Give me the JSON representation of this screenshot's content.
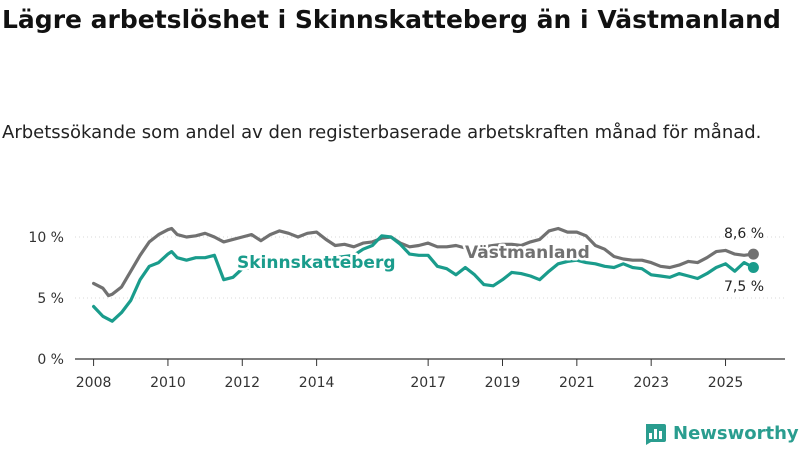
{
  "title": "Lägre arbetslöshet i Skinnskatteberg än i Västmanland",
  "subtitle": "Arbetssökande som andel av den registerbaserade arbetskraften månad för månad.",
  "colors": {
    "skinnskatteberg": "#1a9c8c",
    "vastmanland": "#717171",
    "logo": "#2a9d8f",
    "axis": "#333333"
  },
  "logo": {
    "text": "Newsworthy",
    "icon": "bar-chart-logo-icon"
  },
  "chart_data": {
    "type": "line",
    "title": "Lägre arbetslöshet i Skinnskatteberg än i Västmanland",
    "xlabel": "",
    "ylabel": "",
    "xlim": [
      2007.5,
      2026.6
    ],
    "ylim": [
      0,
      10
    ],
    "y_ticks": [
      0,
      5,
      10
    ],
    "y_tick_labels": [
      "0 %",
      "5 %",
      "10 %"
    ],
    "x_ticks": [
      2008,
      2010,
      2012,
      2014,
      2017,
      2019,
      2021,
      2023,
      2025
    ],
    "x_tick_labels": [
      "2008",
      "2010",
      "2012",
      "2014",
      "2017",
      "2019",
      "2021",
      "2023",
      "2025"
    ],
    "end_labels": [
      "8,6 %",
      "7,5 %"
    ],
    "series": [
      {
        "name": "Västmanland",
        "x": [
          2008.0,
          2008.25,
          2008.4,
          2008.5,
          2008.75,
          2009.0,
          2009.25,
          2009.5,
          2009.75,
          2010.0,
          2010.1,
          2010.25,
          2010.5,
          2010.75,
          2011.0,
          2011.25,
          2011.5,
          2011.75,
          2012.0,
          2012.25,
          2012.5,
          2012.75,
          2013.0,
          2013.25,
          2013.5,
          2013.75,
          2014.0,
          2014.25,
          2014.5,
          2014.75,
          2015.0,
          2015.25,
          2015.5,
          2015.75,
          2016.0,
          2016.25,
          2016.5,
          2016.75,
          2017.0,
          2017.25,
          2017.5,
          2017.75,
          2018.0,
          2018.25,
          2018.5,
          2018.75,
          2019.0,
          2019.25,
          2019.5,
          2019.75,
          2020.0,
          2020.25,
          2020.5,
          2020.75,
          2021.0,
          2021.25,
          2021.5,
          2021.75,
          2022.0,
          2022.25,
          2022.5,
          2022.75,
          2023.0,
          2023.25,
          2023.5,
          2023.75,
          2024.0,
          2024.25,
          2024.5,
          2024.75,
          2025.0,
          2025.25,
          2025.5,
          2025.75
        ],
        "values": [
          6.2,
          5.8,
          5.2,
          5.3,
          5.9,
          7.2,
          8.5,
          9.6,
          10.2,
          10.6,
          10.7,
          10.2,
          10.0,
          10.1,
          10.3,
          10.0,
          9.6,
          9.8,
          10.0,
          10.2,
          9.7,
          10.2,
          10.5,
          10.3,
          10.0,
          10.3,
          10.4,
          9.8,
          9.3,
          9.4,
          9.2,
          9.5,
          9.6,
          9.9,
          10.0,
          9.5,
          9.2,
          9.3,
          9.5,
          9.2,
          9.2,
          9.3,
          9.1,
          9.0,
          9.2,
          9.3,
          9.4,
          9.4,
          9.3,
          9.6,
          9.8,
          10.5,
          10.7,
          10.4,
          10.4,
          10.1,
          9.3,
          9.0,
          8.4,
          8.2,
          8.1,
          8.1,
          7.9,
          7.6,
          7.5,
          7.7,
          8.0,
          7.9,
          8.3,
          8.8,
          8.9,
          8.6,
          8.5,
          8.6
        ]
      },
      {
        "name": "Skinnskatteberg",
        "x": [
          2008.0,
          2008.25,
          2008.5,
          2008.75,
          2009.0,
          2009.25,
          2009.5,
          2009.75,
          2010.0,
          2010.1,
          2010.25,
          2010.5,
          2010.75,
          2011.0,
          2011.25,
          2011.5,
          2011.75,
          2012.0,
          2012.25,
          2012.5,
          2012.75,
          2013.0,
          2013.25,
          2013.5,
          2013.75,
          2014.0,
          2014.25,
          2014.5,
          2014.75,
          2015.0,
          2015.25,
          2015.5,
          2015.75,
          2016.0,
          2016.25,
          2016.5,
          2016.75,
          2017.0,
          2017.25,
          2017.5,
          2017.75,
          2018.0,
          2018.25,
          2018.5,
          2018.75,
          2019.0,
          2019.25,
          2019.5,
          2019.75,
          2020.0,
          2020.25,
          2020.5,
          2020.75,
          2021.0,
          2021.25,
          2021.5,
          2021.75,
          2022.0,
          2022.25,
          2022.5,
          2022.75,
          2023.0,
          2023.25,
          2023.5,
          2023.75,
          2024.0,
          2024.25,
          2024.5,
          2024.75,
          2025.0,
          2025.25,
          2025.5,
          2025.75
        ],
        "values": [
          4.3,
          3.5,
          3.1,
          3.8,
          4.8,
          6.5,
          7.6,
          7.9,
          8.6,
          8.8,
          8.3,
          8.1,
          8.3,
          8.3,
          8.5,
          6.5,
          6.7,
          7.4,
          7.5,
          7.4,
          7.7,
          7.8,
          8.0,
          7.8,
          8.0,
          7.5,
          8.0,
          8.3,
          8.4,
          8.5,
          9.0,
          9.3,
          10.1,
          10.0,
          9.4,
          8.6,
          8.5,
          8.5,
          7.6,
          7.4,
          6.9,
          7.5,
          6.9,
          6.1,
          6.0,
          6.5,
          7.1,
          7.0,
          6.8,
          6.5,
          7.2,
          7.8,
          8.0,
          8.1,
          7.9,
          7.8,
          7.6,
          7.5,
          7.8,
          7.5,
          7.4,
          6.9,
          6.8,
          6.7,
          7.0,
          6.8,
          6.6,
          7.0,
          7.5,
          7.8,
          7.2,
          7.9,
          7.5
        ]
      }
    ]
  }
}
